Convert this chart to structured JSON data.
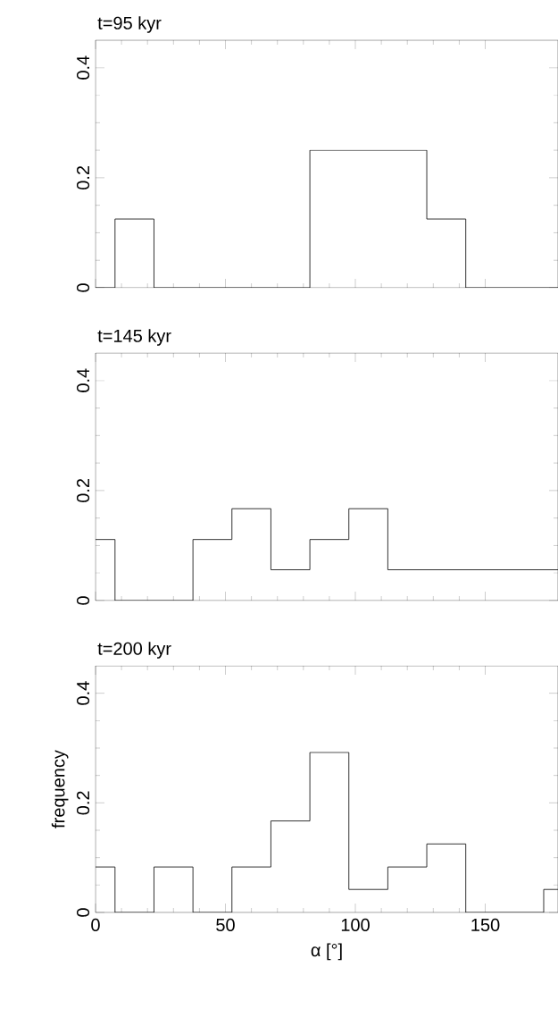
{
  "chart_data": [
    {
      "type": "histogram",
      "title": "t=95 kyr",
      "bins": [
        -7.5,
        7.5,
        22.5,
        37.5,
        52.5,
        67.5,
        82.5,
        97.5,
        112.5,
        127.5,
        142.5,
        157.5,
        172.5,
        187.5
      ],
      "values": [
        0,
        0.125,
        0,
        0,
        0,
        0,
        0.25,
        0.25,
        0.25,
        0.125,
        0,
        0,
        0
      ],
      "color": "#000000",
      "xlim": [
        0,
        178
      ],
      "ylim": [
        0,
        0.45
      ],
      "xticks": [
        0,
        50,
        100,
        150
      ],
      "yticks": [
        0,
        0.2,
        0.4
      ],
      "tick_labels": "y"
    },
    {
      "type": "histogram",
      "title": "t=145 kyr",
      "bins": [
        -7.5,
        7.5,
        22.5,
        37.5,
        52.5,
        67.5,
        82.5,
        97.5,
        112.5,
        127.5,
        142.5,
        157.5,
        172.5,
        187.5
      ],
      "values": [
        0.111,
        0,
        0,
        0.111,
        0.167,
        0.056,
        0.111,
        0.167,
        0.056,
        0.056,
        0.056,
        0.056,
        0.056
      ],
      "color": "#000000",
      "xlim": [
        0,
        178
      ],
      "ylim": [
        0,
        0.45
      ],
      "xticks": [
        0,
        50,
        100,
        150
      ],
      "yticks": [
        0,
        0.2,
        0.4
      ],
      "tick_labels": "y"
    },
    {
      "type": "histogram",
      "title": "t=200 kyr",
      "xlabel": "α [°]",
      "ylabel": "frequency",
      "bins": [
        -7.5,
        7.5,
        22.5,
        37.5,
        52.5,
        67.5,
        82.5,
        97.5,
        112.5,
        127.5,
        142.5,
        157.5,
        172.5,
        187.5
      ],
      "values": [
        0.083,
        0,
        0.083,
        0,
        0.083,
        0.167,
        0.292,
        0.042,
        0.083,
        0.125,
        0,
        0,
        0.042
      ],
      "color": "#000000",
      "xlim": [
        0,
        178
      ],
      "ylim": [
        0,
        0.45
      ],
      "xticks": [
        0,
        50,
        100,
        150
      ],
      "yticks": [
        0,
        0.2,
        0.4
      ]
    }
  ]
}
